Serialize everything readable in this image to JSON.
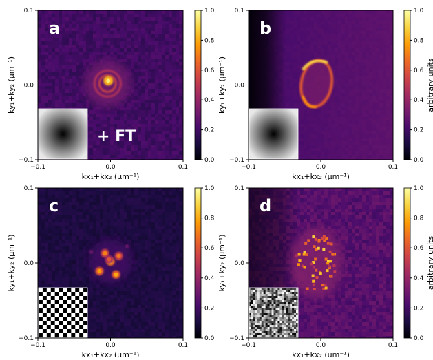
{
  "figure": {
    "cmap": [
      "#000004",
      "#1b0c41",
      "#4a0c6b",
      "#781c6d",
      "#a52c60",
      "#cf4446",
      "#ed6925",
      "#fb9b06",
      "#f7d13d",
      "#fcffa4"
    ],
    "panels": [
      {
        "letter": "a",
        "ylabel_base": "ky₁+ky₂ ",
        "ylabel_unit": "(μm⁻¹)",
        "xlabel_base": "kx₁+kx₂ ",
        "xlabel_unit": "(μm⁻¹)",
        "x_ticks": [
          "−0.1",
          "0.0",
          "0.1"
        ],
        "y_ticks": [
          "0.1",
          "0.0",
          "−0.1"
        ],
        "cbar_ticks": [
          "1.0",
          "0.8",
          "0.6",
          "0.4",
          "0.2",
          "0.0"
        ],
        "cbar_label": "",
        "annotation": "+ FT",
        "inset": "radial",
        "pattern": "ring-small"
      },
      {
        "letter": "b",
        "ylabel_base": "ky₁+ky₂ ",
        "ylabel_unit": "(μm⁻¹)",
        "xlabel_base": "kx₁+kx₂ ",
        "xlabel_unit": "(μm⁻¹)",
        "x_ticks": [
          "−0.1",
          "0.0",
          "0.1"
        ],
        "y_ticks": [
          "0.1",
          "0.0",
          "−0.1"
        ],
        "cbar_ticks": [
          "1.0",
          "0.8",
          "0.6",
          "0.4",
          "0.2",
          "0.0"
        ],
        "cbar_label": "arbitrary units",
        "annotation": "",
        "inset": "radial",
        "pattern": "ellipse-ring"
      },
      {
        "letter": "c",
        "ylabel_base": "ky₁+ky₂ ",
        "ylabel_unit": "(μm⁻¹)",
        "xlabel_base": "kx₁+kx₂ ",
        "xlabel_unit": "(μm⁻¹)",
        "x_ticks": [
          "−0.1",
          "0.0",
          "0.1"
        ],
        "y_ticks": [
          "0.1",
          "0.0",
          "−0.1"
        ],
        "cbar_ticks": [
          "1.0",
          "0.8",
          "0.6",
          "0.4",
          "0.2",
          "0.0"
        ],
        "cbar_label": "",
        "annotation": "",
        "inset": "checker",
        "pattern": "spots"
      },
      {
        "letter": "d",
        "ylabel_base": "ky₁+ky₂ ",
        "ylabel_unit": "(μm⁻¹)",
        "xlabel_base": "kx₁+kx₂ ",
        "xlabel_unit": "(μm⁻¹)",
        "x_ticks": [
          "−0.1",
          "0.0",
          "0.1"
        ],
        "y_ticks": [
          "0.1",
          "0.0",
          "−0.1"
        ],
        "cbar_ticks": [
          "1.0",
          "0.8",
          "0.6",
          "0.4",
          "0.2",
          "0.0"
        ],
        "cbar_label": "arbitrary units",
        "annotation": "",
        "inset": "noise",
        "pattern": "speckle"
      }
    ]
  }
}
